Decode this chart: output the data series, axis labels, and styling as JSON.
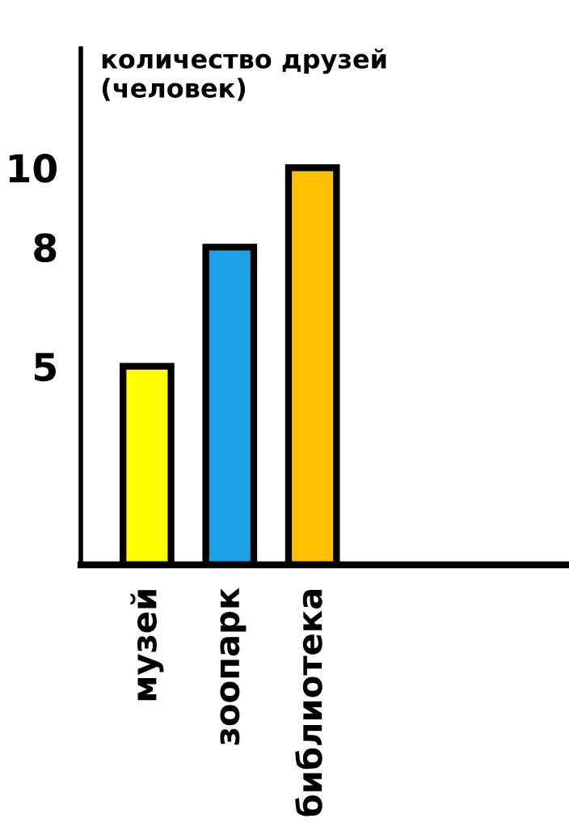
{
  "chart_data": {
    "type": "bar",
    "ylabel": "количество друзей\n(человек)",
    "categories": [
      "музей",
      "зоопарк",
      "библиотека"
    ],
    "values": [
      5,
      8,
      10
    ],
    "colors": [
      "#ffff00",
      "#1ca0e6",
      "#ffc000"
    ],
    "ylim": [
      0,
      13
    ],
    "yticks": [
      5,
      8,
      10
    ]
  }
}
